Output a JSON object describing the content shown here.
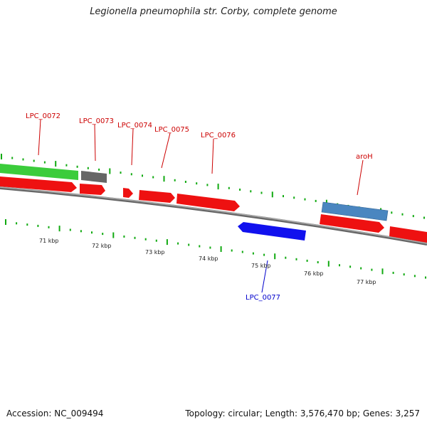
{
  "title": "Legionella pneumophila str. Corby, complete genome",
  "footer": {
    "accession": "Accession: NC_009494",
    "topology": "Topology: circular; Length: 3,576,470 bp; Genes: 3,257"
  },
  "colors": {
    "gene_forward": "#ee0000",
    "gene_reverse": "#1111ee",
    "feature_green": "#33cc33",
    "feature_gray": "#666666",
    "feature_steelblue": "#4682b4",
    "backbone": "#888888",
    "label_red": "#cc0000",
    "label_blue": "#0000cc",
    "dots_green": "#11aa11"
  },
  "scale_labels": [
    "71 kbp",
    "72 kbp",
    "73 kbp",
    "74 kbp",
    "75 kbp",
    "76 kbp",
    "77 kbp"
  ],
  "gene_labels": [
    {
      "text": "LPC_0072",
      "strand": "forward"
    },
    {
      "text": "LPC_0073",
      "strand": "forward"
    },
    {
      "text": "LPC_0074",
      "strand": "forward"
    },
    {
      "text": "LPC_0075",
      "strand": "forward"
    },
    {
      "text": "LPC_0076",
      "strand": "forward"
    },
    {
      "text": "aroH",
      "strand": "forward"
    },
    {
      "text": "LPC_0077",
      "strand": "reverse"
    }
  ]
}
